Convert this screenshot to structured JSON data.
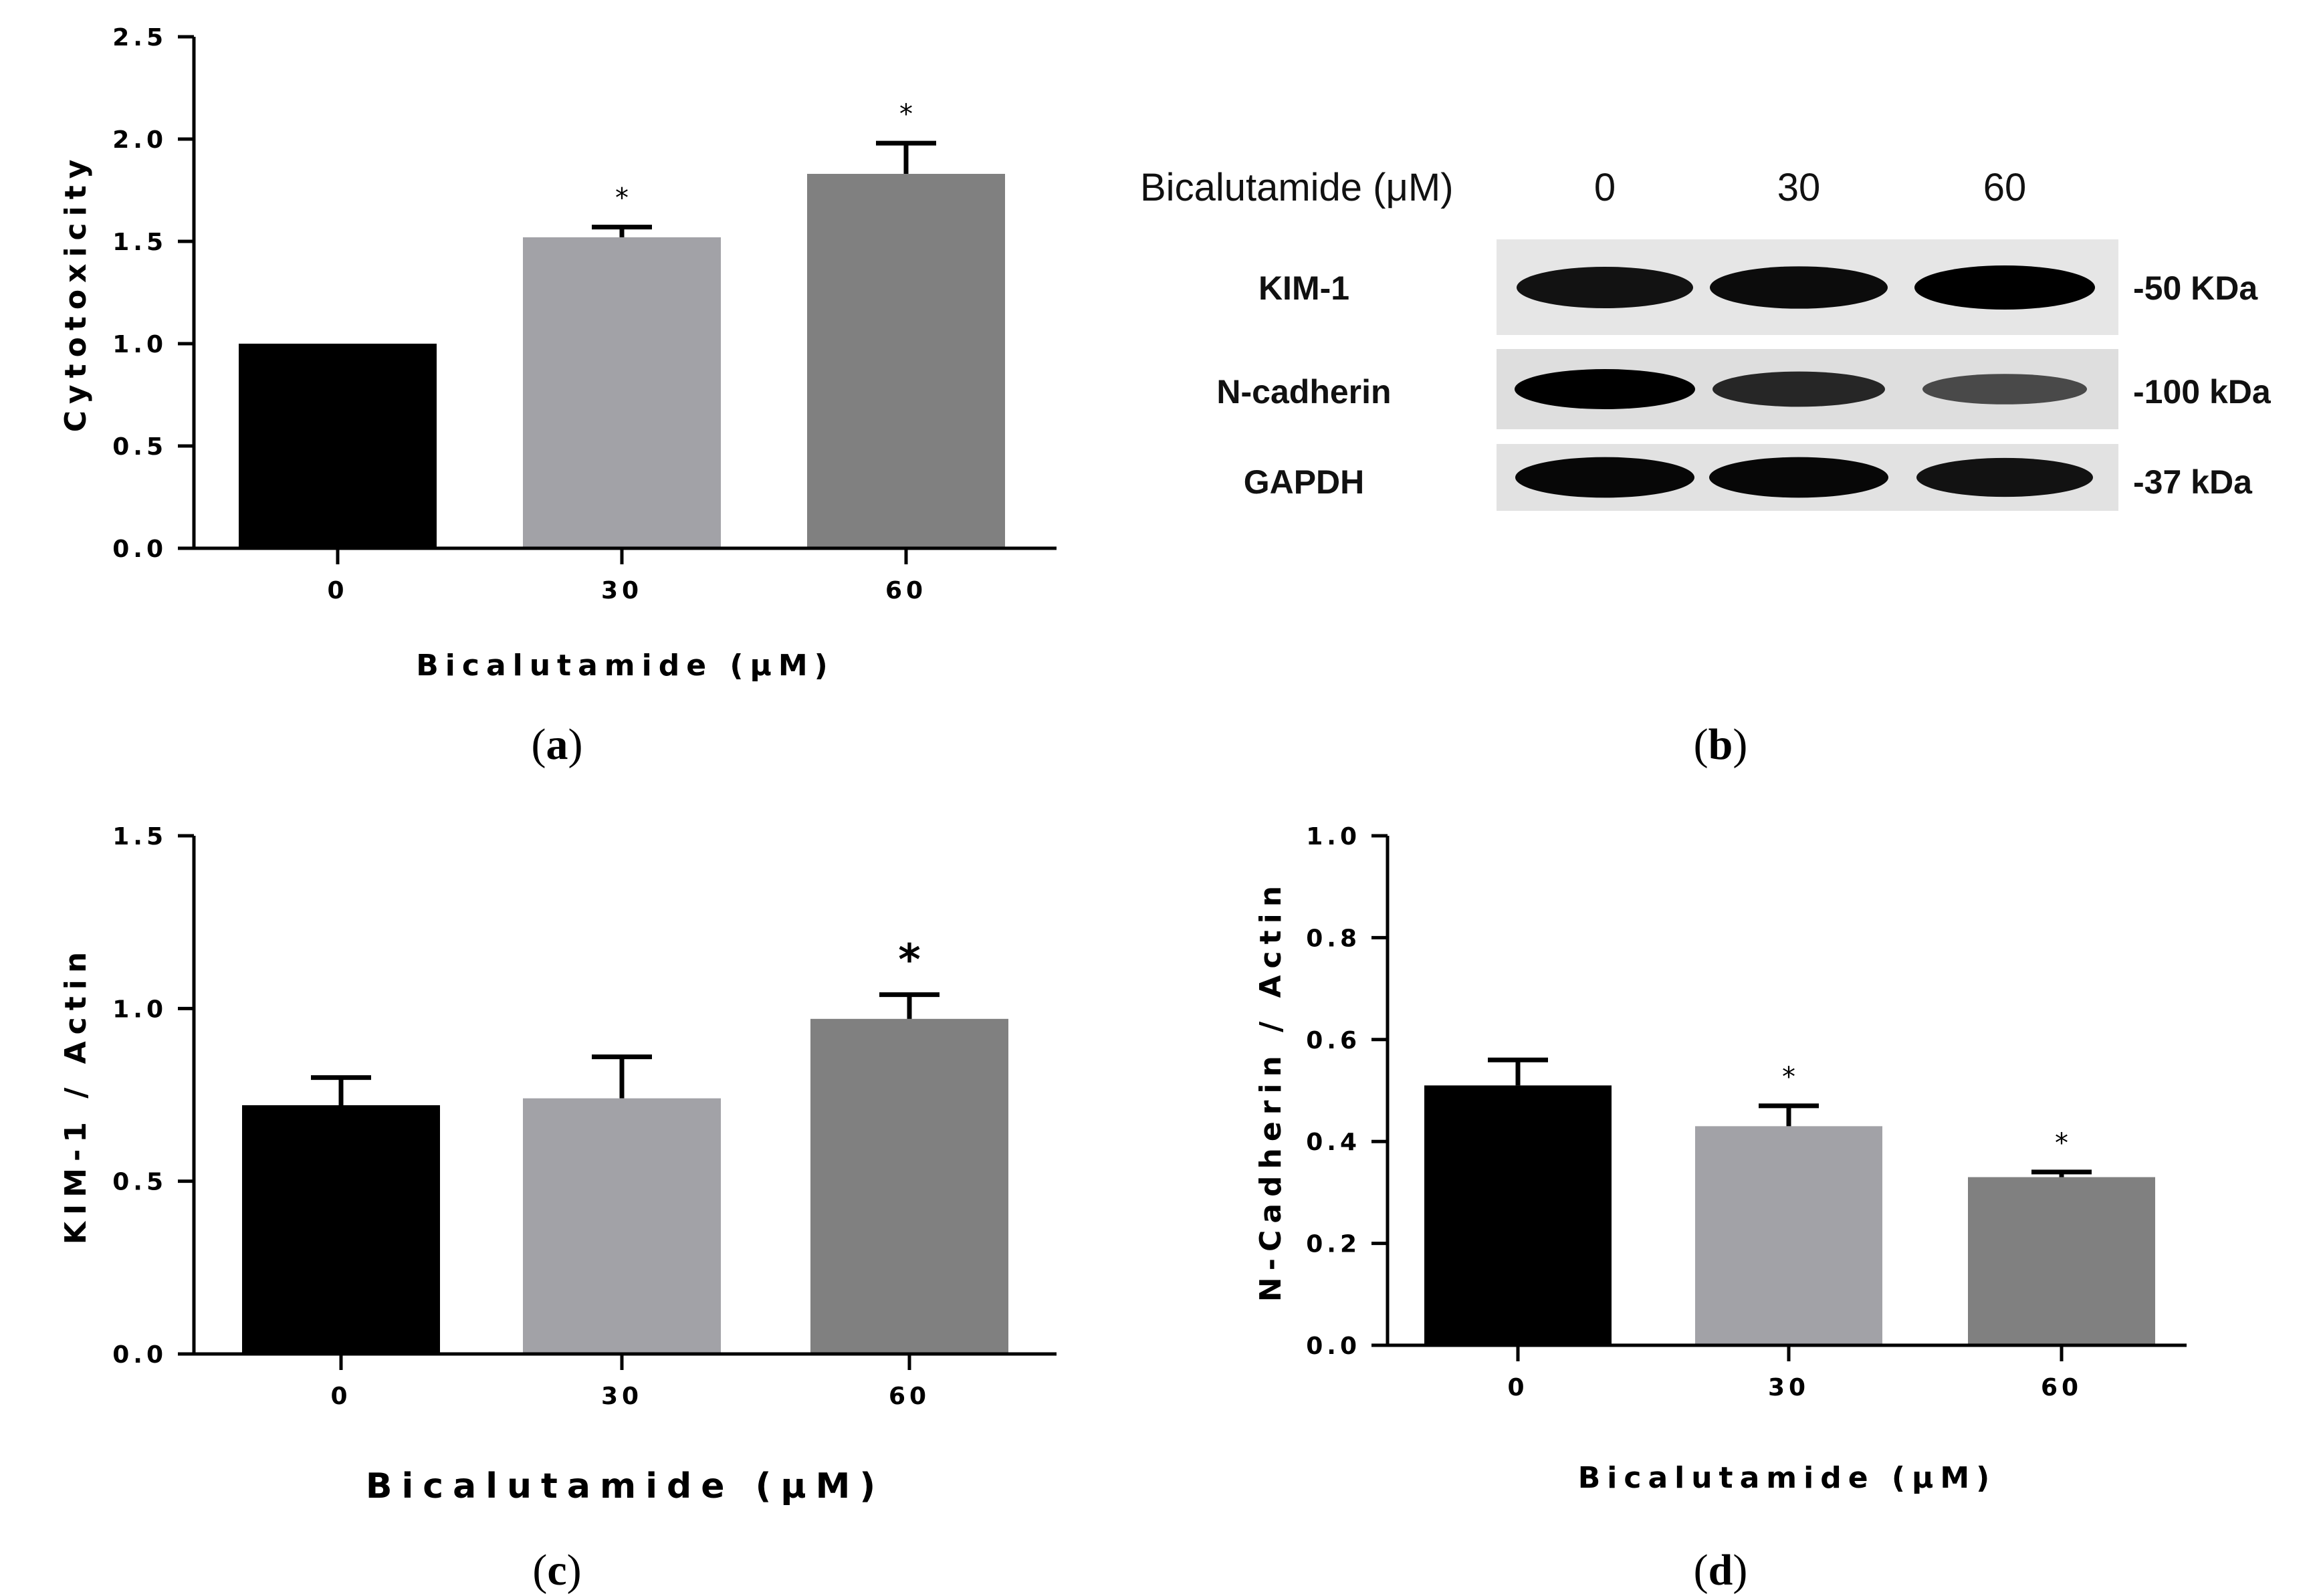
{
  "chart_data": [
    {
      "id": "a",
      "type": "bar",
      "panel_label": "a",
      "categories": [
        "0",
        "30",
        "60"
      ],
      "values": [
        1.0,
        1.52,
        1.83
      ],
      "errors": [
        0,
        0.05,
        0.15
      ],
      "significance": [
        "",
        "*",
        "*"
      ],
      "colors": [
        "#000000",
        "#a2a2a7",
        "#808080"
      ],
      "ylabel": "Cytotoxicity",
      "xlabel": "Bicalutamide (μM)",
      "ylim": [
        0,
        2.5
      ],
      "yticks": [
        "0.0",
        "0.5",
        "1.0",
        "1.5",
        "2.0",
        "2.5"
      ]
    },
    {
      "id": "c",
      "type": "bar",
      "panel_label": "c",
      "categories": [
        "0",
        "30",
        "60"
      ],
      "values": [
        0.72,
        0.74,
        0.97
      ],
      "errors": [
        0.08,
        0.12,
        0.07
      ],
      "significance": [
        "",
        "",
        "*"
      ],
      "colors": [
        "#000000",
        "#a2a2a7",
        "#808080"
      ],
      "ylabel": "KIM-1 / Actin",
      "xlabel": "Bicalutamide (μM)",
      "ylim": [
        0,
        1.5
      ],
      "yticks": [
        "0.0",
        "0.5",
        "1.0",
        "1.5"
      ]
    },
    {
      "id": "d",
      "type": "bar",
      "panel_label": "d",
      "categories": [
        "0",
        "30",
        "60"
      ],
      "values": [
        0.51,
        0.43,
        0.33
      ],
      "errors": [
        0.05,
        0.04,
        0.01
      ],
      "significance": [
        "",
        "*",
        "*"
      ],
      "colors": [
        "#000000",
        "#a2a2a7",
        "#808080"
      ],
      "ylabel": "N-Cadherin / Actin",
      "xlabel": "Bicalutamide (μM)",
      "ylim": [
        0,
        1.0
      ],
      "yticks": [
        "0.0",
        "0.2",
        "0.4",
        "0.6",
        "0.8",
        "1.0"
      ]
    }
  ],
  "blot": {
    "panel_label": "b",
    "header_label": "Bicalutamide (μM)",
    "lanes": [
      "0",
      "30",
      "60"
    ],
    "rows": [
      {
        "name": "KIM-1",
        "size": "-50 KDa",
        "intensity": [
          0.85,
          0.9,
          1.0
        ]
      },
      {
        "name": "N-cadherin",
        "size": "-100  kDa",
        "intensity": [
          1.0,
          0.7,
          0.4
        ]
      },
      {
        "name": "GAPDH",
        "size": "-37 kDa",
        "intensity": [
          0.95,
          0.95,
          0.85
        ]
      }
    ]
  }
}
